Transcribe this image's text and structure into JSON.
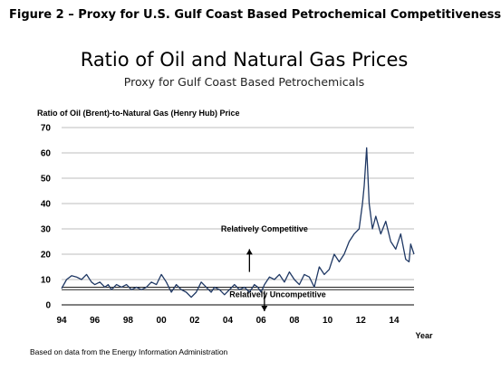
{
  "figure_caption": "Figure 2 – Proxy for U.S. Gulf Coast Based Petrochemical Competitiveness",
  "source_note": "Based on data from the Energy Information Administration",
  "colors": {
    "line": "#1f3864",
    "grid": "#a6a6a6",
    "axis": "#000000",
    "reference": "#000000"
  },
  "chart_data": {
    "type": "line",
    "title": "Ratio of Oil and Natural Gas Prices",
    "subtitle": "Proxy for Gulf Coast Based Petrochemicals",
    "ylabel": "Ratio of Oil (Brent)-to-Natural Gas (Henry Hub) Price",
    "xlabel": "Year",
    "ylim": [
      0,
      70
    ],
    "yticks": [
      0,
      10,
      20,
      30,
      40,
      50,
      60,
      70
    ],
    "xlim": [
      1994,
      2015.2
    ],
    "xticks": [
      1994,
      1996,
      1998,
      2000,
      2002,
      2004,
      2006,
      2008,
      2010,
      2012,
      2014
    ],
    "xtick_labels": [
      "94",
      "96",
      "98",
      "00",
      "02",
      "04",
      "06",
      "08",
      "10",
      "12",
      "14"
    ],
    "grid": "horizontal",
    "reference_lines": [
      7,
      6
    ],
    "annotations": [
      {
        "text": "Relatively Competitive",
        "x": 2006.2,
        "y": 29,
        "arrow": "up",
        "arrow_x": 2005.3,
        "arrow_from": 13,
        "arrow_to": 22
      },
      {
        "text": "Relatively Uncompetitive",
        "x": 2007.0,
        "y": 3,
        "arrow": "down",
        "arrow_x": 2006.2,
        "arrow_from": 5.5,
        "arrow_to": -2.5
      }
    ],
    "series": [
      {
        "x": [
          1994.0,
          1994.3,
          1994.6,
          1994.9,
          1995.2,
          1995.5,
          1995.8,
          1996.0,
          1996.3,
          1996.6,
          1996.8,
          1997.0,
          1997.3,
          1997.6,
          1997.9,
          1998.2,
          1998.5,
          1998.8,
          1999.1,
          1999.4,
          1999.7,
          2000.0,
          2000.3,
          2000.6,
          2000.9,
          2001.2,
          2001.5,
          2001.8,
          2002.1,
          2002.4,
          2002.7,
          2003.0,
          2003.2,
          2003.5,
          2003.8,
          2004.1,
          2004.4,
          2004.7,
          2005.0,
          2005.3,
          2005.6,
          2005.8,
          2006.0,
          2006.2,
          2006.5,
          2006.8,
          2007.1,
          2007.4,
          2007.7,
          2008.0,
          2008.3,
          2008.6,
          2008.9,
          2009.2,
          2009.5,
          2009.8,
          2010.1,
          2010.4,
          2010.7,
          2011.0,
          2011.3,
          2011.6,
          2011.9,
          2012.1,
          2012.2,
          2012.35,
          2012.5,
          2012.7,
          2012.9,
          2013.2,
          2013.5,
          2013.8,
          2014.1,
          2014.4,
          2014.7,
          2014.9,
          2015.0,
          2015.2
        ],
        "y": [
          6.5,
          10,
          11.5,
          11,
          10,
          12,
          9,
          8,
          9,
          7,
          8,
          6,
          8,
          7,
          8,
          6,
          7,
          6,
          7,
          9,
          8,
          12,
          9,
          5,
          8,
          6,
          5,
          3,
          5,
          9,
          7,
          5,
          7,
          6,
          4,
          6,
          8,
          6,
          7,
          5,
          8,
          7,
          5,
          8,
          11,
          10,
          12,
          9,
          13,
          10,
          8,
          12,
          11,
          7,
          15,
          12,
          14,
          20,
          17,
          20,
          25,
          28,
          30,
          40,
          47,
          62,
          40,
          30,
          35,
          28,
          33,
          25,
          22,
          28,
          18,
          17,
          24,
          20
        ]
      }
    ]
  }
}
